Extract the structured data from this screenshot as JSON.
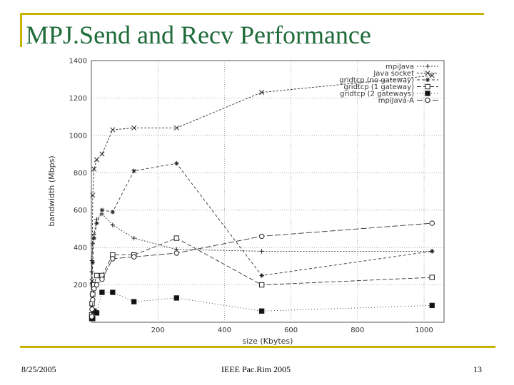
{
  "slide": {
    "title": "MPJ.Send and Recv Performance",
    "date": "8/25/2005",
    "venue": "IEEE Pac.Rim 2005",
    "page": "13",
    "accent_color": "#c8b400",
    "title_color": "#1f6b3a"
  },
  "chart_data": {
    "type": "line",
    "title": "",
    "xlabel": "size (Kbytes)",
    "ylabel": "bandwidth (Mbps)",
    "xlim": [
      0,
      1060
    ],
    "ylim": [
      0,
      1400
    ],
    "xticks": [
      200,
      400,
      600,
      800,
      1000
    ],
    "yticks": [
      200,
      400,
      600,
      800,
      1000,
      1200,
      1400
    ],
    "grid": true,
    "legend_position": "top-right",
    "series": [
      {
        "name": "mpiJava",
        "marker": "plus",
        "dash": "2,2",
        "x": [
          1,
          2,
          4,
          8,
          16,
          32,
          64,
          128,
          256,
          512,
          1024
        ],
        "y": [
          270,
          330,
          420,
          470,
          550,
          580,
          520,
          450,
          390,
          380,
          380
        ]
      },
      {
        "name": "Java socket",
        "marker": "cross",
        "dash": "3,2",
        "x": [
          1,
          2,
          4,
          8,
          16,
          32,
          64,
          128,
          256,
          512,
          1024
        ],
        "y": [
          80,
          220,
          680,
          820,
          870,
          900,
          1030,
          1040,
          1040,
          1230,
          1320
        ]
      },
      {
        "name": "gridtcp (no gateway)",
        "marker": "asterisk",
        "dash": "4,3",
        "x": [
          1,
          2,
          4,
          8,
          16,
          32,
          64,
          128,
          256,
          512,
          1024
        ],
        "y": [
          150,
          200,
          320,
          450,
          530,
          600,
          590,
          810,
          850,
          250,
          380
        ]
      },
      {
        "name": "gridtcp (1 gateway)",
        "marker": "square",
        "dash": "6,3",
        "x": [
          1,
          2,
          4,
          8,
          16,
          32,
          64,
          128,
          256,
          512,
          1024
        ],
        "y": [
          40,
          100,
          150,
          200,
          250,
          250,
          360,
          360,
          450,
          200,
          240
        ]
      },
      {
        "name": "gridtcp (2 gateways)",
        "marker": "fillsquare",
        "dash": "1,3",
        "x": [
          1,
          2,
          4,
          8,
          16,
          32,
          64,
          128,
          256,
          512,
          1024
        ],
        "y": [
          20,
          20,
          20,
          60,
          50,
          160,
          160,
          110,
          130,
          60,
          90
        ]
      },
      {
        "name": "mpiJava-A",
        "marker": "circle",
        "dash": "8,3",
        "x": [
          1,
          2,
          4,
          8,
          16,
          32,
          64,
          128,
          256,
          512,
          1024
        ],
        "y": [
          30,
          70,
          120,
          180,
          200,
          230,
          340,
          350,
          370,
          460,
          530
        ]
      }
    ]
  }
}
